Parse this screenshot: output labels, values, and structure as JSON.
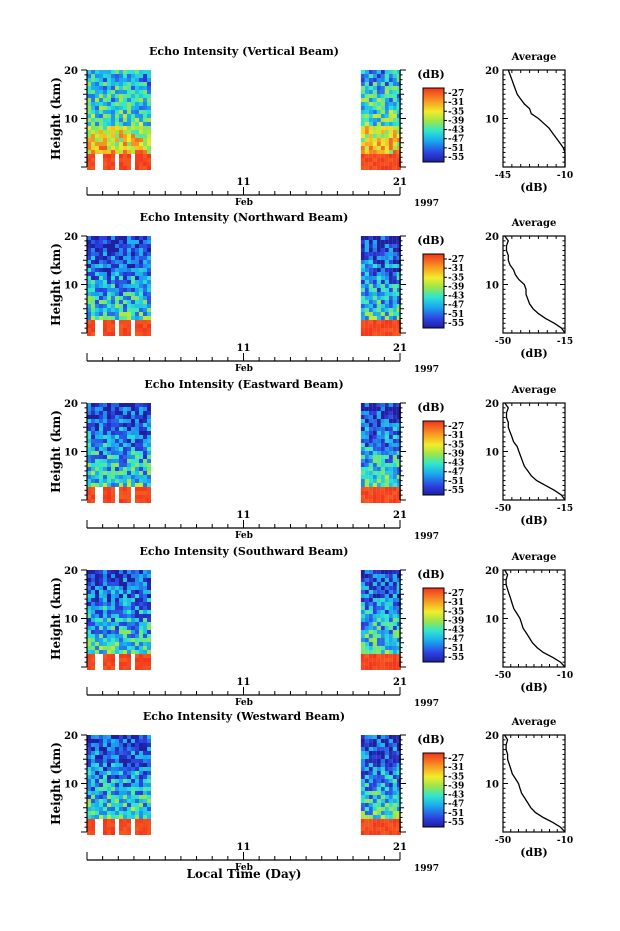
{
  "chart_data": {
    "type": "heatmap",
    "colorbar": {
      "unit": "(dB)",
      "ticks": [
        "-27",
        "-31",
        "-35",
        "-39",
        "-43",
        "-47",
        "-51",
        "-55"
      ],
      "colormap": "jet",
      "range": [
        -55,
        -27
      ]
    },
    "time_axis": {
      "xlabel": "Local Time (Day)",
      "month_label": "Feb",
      "year_label": "1997",
      "ticks": [
        "11",
        "21"
      ],
      "major_days": [
        1,
        11,
        21
      ],
      "xlim_day": [
        1,
        21
      ]
    },
    "height_axis": {
      "ylabel": "Height (km)",
      "ticks": [
        "10",
        "20"
      ],
      "ylim_km": [
        0,
        20
      ]
    },
    "profile_title": "Average",
    "profile_xlabel": "(dB)",
    "data_windows_day": [
      [
        1.0,
        4.9
      ],
      [
        18.5,
        21.0
      ]
    ],
    "panels": [
      {
        "title": "Echo Intensity (Vertical Beam)",
        "beam": "vertical",
        "profile_xticks": [
          "-45",
          "-10"
        ],
        "profile_xlim": [
          -45,
          -10
        ],
        "avg_profile": {
          "height_km": [
            0,
            1,
            2,
            3,
            4,
            5,
            6,
            7,
            8,
            9,
            10,
            11,
            12,
            13,
            14,
            15,
            16,
            17,
            18,
            19,
            20
          ],
          "db": [
            -10,
            -10,
            -10,
            -10,
            -11,
            -13,
            -15,
            -17,
            -19,
            -22,
            -25,
            -29,
            -30,
            -33,
            -35,
            -37,
            -38,
            -39,
            -40,
            -41,
            -42
          ]
        }
      },
      {
        "title": "Echo Intensity (Northward Beam)",
        "beam": "northward",
        "profile_xticks": [
          "-50",
          "-15"
        ],
        "profile_xlim": [
          -50,
          -15
        ],
        "avg_profile": {
          "height_km": [
            0,
            1,
            2,
            3,
            4,
            5,
            6,
            7,
            8,
            9,
            10,
            11,
            12,
            13,
            14,
            15,
            16,
            17,
            18,
            19,
            20
          ],
          "db": [
            -15,
            -17,
            -21,
            -26,
            -30,
            -33,
            -35,
            -36,
            -37,
            -37,
            -38,
            -41,
            -43,
            -44,
            -46,
            -47,
            -47,
            -48,
            -48,
            -47,
            -49
          ]
        }
      },
      {
        "title": "Echo Intensity (Eastward Beam)",
        "beam": "eastward",
        "profile_xticks": [
          "-50",
          "-15"
        ],
        "profile_xlim": [
          -50,
          -15
        ],
        "avg_profile": {
          "height_km": [
            0,
            1,
            2,
            3,
            4,
            5,
            6,
            7,
            8,
            9,
            10,
            11,
            12,
            13,
            14,
            15,
            16,
            17,
            18,
            19,
            20
          ],
          "db": [
            -15,
            -17,
            -21,
            -26,
            -31,
            -34,
            -36,
            -38,
            -39,
            -40,
            -41,
            -42,
            -44,
            -45,
            -46,
            -47,
            -47,
            -48,
            -48,
            -47,
            -49
          ]
        }
      },
      {
        "title": "Echo Intensity (Southward Beam)",
        "beam": "southward",
        "profile_xticks": [
          "-50",
          "-10"
        ],
        "profile_xlim": [
          -50,
          -10
        ],
        "avg_profile": {
          "height_km": [
            0,
            1,
            2,
            3,
            4,
            5,
            6,
            7,
            8,
            9,
            10,
            11,
            12,
            13,
            14,
            15,
            16,
            17,
            18,
            19,
            20
          ],
          "db": [
            -10,
            -13,
            -18,
            -24,
            -28,
            -31,
            -33,
            -35,
            -37,
            -38,
            -39,
            -41,
            -43,
            -44,
            -45,
            -46,
            -47,
            -48,
            -48,
            -47,
            -49
          ]
        }
      },
      {
        "title": "Echo Intensity (Westward Beam)",
        "beam": "westward",
        "profile_xticks": [
          "-50",
          "-10"
        ],
        "profile_xlim": [
          -50,
          -10
        ],
        "avg_profile": {
          "height_km": [
            0,
            1,
            2,
            3,
            4,
            5,
            6,
            7,
            8,
            9,
            10,
            11,
            12,
            13,
            14,
            15,
            16,
            17,
            18,
            19,
            20
          ],
          "db": [
            -10,
            -13,
            -18,
            -24,
            -29,
            -32,
            -34,
            -36,
            -38,
            -39,
            -40,
            -42,
            -44,
            -45,
            -46,
            -47,
            -47,
            -48,
            -48,
            -47,
            -49
          ]
        }
      }
    ]
  }
}
